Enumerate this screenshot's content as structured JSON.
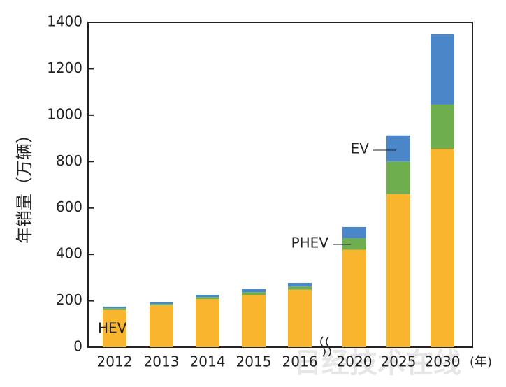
{
  "chart_data": {
    "type": "bar",
    "stacked": true,
    "ylabel": "年销量（万辆）",
    "xunit": "(年)",
    "watermark": "日经技术在线",
    "categories": [
      "2012",
      "2013",
      "2014",
      "2015",
      "2016",
      "2020",
      "2025",
      "2030"
    ],
    "series": [
      {
        "name": "HEV",
        "color": "#f9b52d",
        "values": [
          160,
          180,
          207,
          225,
          248,
          420,
          660,
          855
        ]
      },
      {
        "name": "PHEV",
        "color": "#6fae4f",
        "values": [
          8,
          6,
          9,
          12,
          13,
          50,
          140,
          190
        ]
      },
      {
        "name": "EV",
        "color": "#4a86c8",
        "values": [
          7,
          9,
          10,
          14,
          16,
          48,
          113,
          305
        ]
      }
    ],
    "ylim": [
      0,
      1400
    ],
    "yticks": [
      0,
      200,
      400,
      600,
      800,
      1000,
      1200,
      1400
    ]
  }
}
